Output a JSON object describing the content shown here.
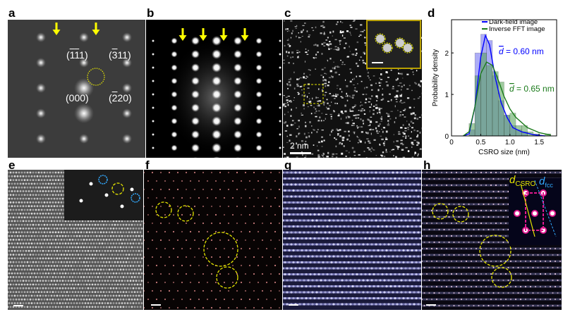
{
  "panels": {
    "a": {
      "label": "a",
      "indices": {
        "i111": [
          "(",
          "1",
          "1",
          "1)"
        ],
        "i311": [
          "(",
          "3",
          "11)"
        ],
        "i000": "(000)",
        "i220": [
          "(",
          "2",
          "20)"
        ]
      }
    },
    "b": {
      "label": "b"
    },
    "c": {
      "label": "c",
      "scale_bar": "2 nm"
    },
    "d": {
      "label": "d"
    },
    "e": {
      "label": "e"
    },
    "f": {
      "label": "f"
    },
    "g": {
      "label": "g"
    },
    "h": {
      "label": "h",
      "inset": {
        "d_csro": "d",
        "d_csro_sub": "CSRO",
        "d_fcc": "d",
        "d_fcc_sub": "fcc"
      }
    }
  },
  "colors": {
    "arrow": "#ffff00",
    "circle": "#e5e500",
    "dark_field": "#0000ff",
    "inverse_fft": "#1a7a1a",
    "fft_marker": "#33aaff",
    "magenta": "#e0198f"
  },
  "chart_data": {
    "type": "bar",
    "xlabel": "CSRO size (nm)",
    "ylabel": "Probability density",
    "xlim": [
      0,
      1.8
    ],
    "ylim": [
      0,
      2.8
    ],
    "xticks": [
      "0",
      "0.5",
      "1.0",
      "1.5"
    ],
    "yticks": [
      "0",
      "1",
      "2"
    ],
    "bin_edges": [
      0.3,
      0.4,
      0.5,
      0.6,
      0.7,
      0.8,
      0.9,
      1.0,
      1.1,
      1.2,
      1.3,
      1.4,
      1.5,
      1.6,
      1.7
    ],
    "series": [
      {
        "name": "Dark-field image",
        "values": [
          0.15,
          2.0,
          2.45,
          2.3,
          1.45,
          0.85,
          0.5,
          0.25,
          0.15,
          0.1,
          0.0,
          0.0,
          0.0,
          0.0
        ],
        "mean_label": "= 0.60 nm",
        "mean_symbol": "d"
      },
      {
        "name": "Inverse FFT image",
        "values": [
          0.3,
          1.45,
          2.0,
          1.7,
          1.55,
          1.3,
          0.5,
          0.55,
          0.25,
          0.25,
          0.1,
          0.05,
          0.0,
          0.05
        ],
        "mean_label": "= 0.65 nm",
        "mean_symbol": "d"
      }
    ],
    "curves": {
      "Dark-field image": [
        [
          0.2,
          0.0
        ],
        [
          0.3,
          0.05
        ],
        [
          0.4,
          0.7
        ],
        [
          0.5,
          1.9
        ],
        [
          0.58,
          2.42
        ],
        [
          0.65,
          2.2
        ],
        [
          0.75,
          1.4
        ],
        [
          0.85,
          0.8
        ],
        [
          0.95,
          0.45
        ],
        [
          1.05,
          0.2
        ],
        [
          1.2,
          0.1
        ],
        [
          1.4,
          0.03
        ],
        [
          1.6,
          0.0
        ]
      ],
      "Inverse FFT image": [
        [
          0.2,
          0.0
        ],
        [
          0.3,
          0.1
        ],
        [
          0.4,
          0.7
        ],
        [
          0.5,
          1.5
        ],
        [
          0.6,
          1.78
        ],
        [
          0.7,
          1.7
        ],
        [
          0.8,
          1.35
        ],
        [
          0.9,
          0.95
        ],
        [
          1.0,
          0.65
        ],
        [
          1.1,
          0.45
        ],
        [
          1.3,
          0.2
        ],
        [
          1.5,
          0.08
        ],
        [
          1.7,
          0.02
        ]
      ]
    },
    "legend": "top"
  }
}
